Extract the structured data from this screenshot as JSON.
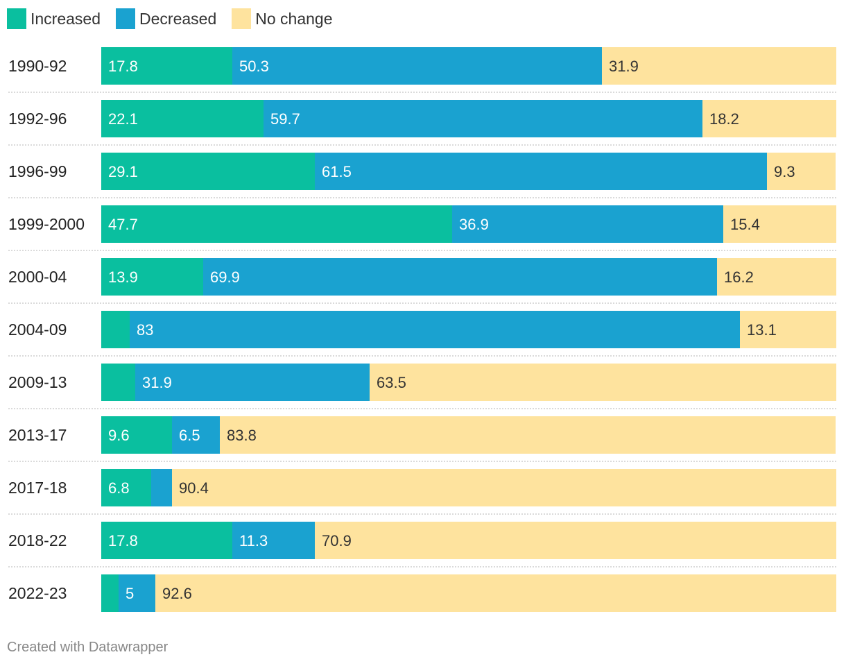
{
  "chart_data": {
    "type": "bar",
    "orientation": "horizontal",
    "stacked": true,
    "categories": [
      "1990-92",
      "1992-96",
      "1996-99",
      "1999-2000",
      "2000-04",
      "2004-09",
      "2009-13",
      "2013-17",
      "2017-18",
      "2018-22",
      "2022-23"
    ],
    "series": [
      {
        "name": "Increased",
        "color": "#0abf9f",
        "values": [
          17.8,
          22.1,
          29.1,
          47.7,
          13.9,
          3.9,
          4.6,
          9.6,
          6.8,
          17.8,
          2.4
        ],
        "labels": [
          "17.8",
          "22.1",
          "29.1",
          "47.7",
          "13.9",
          "",
          "",
          "9.6",
          "6.8",
          "17.8",
          ""
        ]
      },
      {
        "name": "Decreased",
        "color": "#1aa2d0",
        "values": [
          50.3,
          59.7,
          61.5,
          36.9,
          69.9,
          83,
          31.9,
          6.5,
          2.8,
          11.3,
          5
        ],
        "labels": [
          "50.3",
          "59.7",
          "61.5",
          "36.9",
          "69.9",
          "83",
          "31.9",
          "6.5",
          "",
          "11.3",
          "5"
        ]
      },
      {
        "name": "No change",
        "color": "#fee39e",
        "values": [
          31.9,
          18.2,
          9.3,
          15.4,
          16.2,
          13.1,
          63.5,
          83.8,
          90.4,
          70.9,
          92.6
        ],
        "labels": [
          "31.9",
          "18.2",
          "9.3",
          "15.4",
          "16.2",
          "13.1",
          "63.5",
          "83.8",
          "90.4",
          "70.9",
          "92.6"
        ]
      }
    ],
    "title": "",
    "xlabel": "",
    "ylabel": "",
    "xlim": [
      0,
      100
    ],
    "grid": false,
    "legend": "top-left"
  },
  "footer": {
    "credit": "Created with Datawrapper"
  }
}
